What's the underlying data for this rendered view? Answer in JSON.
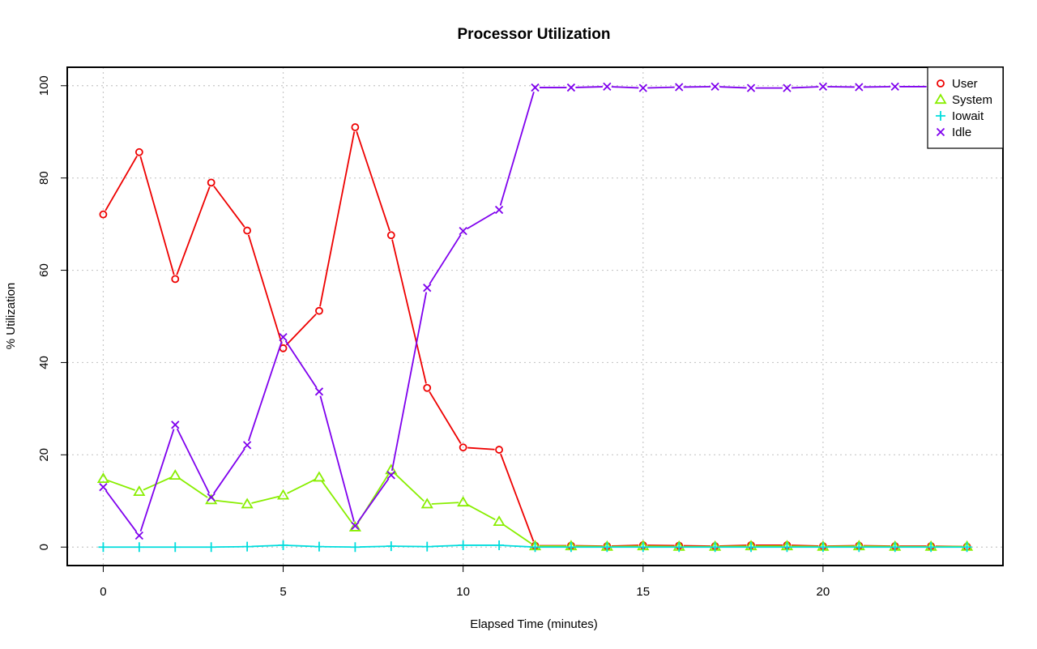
{
  "chart_data": {
    "type": "line",
    "title": "Processor Utilization",
    "xlabel": "Elapsed Time (minutes)",
    "ylabel": "% Utilization",
    "xlim": [
      -1,
      25
    ],
    "ylim": [
      -4,
      104
    ],
    "xticks": [
      0,
      5,
      10,
      15,
      20
    ],
    "yticks": [
      0,
      20,
      40,
      60,
      80,
      100
    ],
    "grid": true,
    "legend_position": "top-right",
    "x": [
      0,
      1,
      2,
      3,
      4,
      5,
      6,
      7,
      8,
      9,
      10,
      11,
      12,
      13,
      14,
      15,
      16,
      17,
      18,
      19,
      20,
      21,
      22,
      23,
      24
    ],
    "series": [
      {
        "name": "User",
        "color": "#ee0000",
        "marker": "circle",
        "values": [
          72.1,
          85.6,
          58.1,
          79.0,
          68.6,
          43.1,
          51.2,
          91.0,
          67.6,
          34.5,
          21.6,
          21.1,
          0.3,
          0.3,
          0.2,
          0.4,
          0.3,
          0.2,
          0.4,
          0.4,
          0.2,
          0.3,
          0.2,
          0.2,
          0.1
        ]
      },
      {
        "name": "System",
        "color": "#88ee00",
        "marker": "triangle",
        "values": [
          14.8,
          12.0,
          15.5,
          10.2,
          9.3,
          11.2,
          15.1,
          4.3,
          16.7,
          9.3,
          9.7,
          5.5,
          0.2,
          0.2,
          0.1,
          0.2,
          0.1,
          0.1,
          0.2,
          0.2,
          0.1,
          0.2,
          0.1,
          0.1,
          0.1
        ]
      },
      {
        "name": "Iowait",
        "color": "#00dddd",
        "marker": "plus",
        "values": [
          0.0,
          0.0,
          0.0,
          0.0,
          0.1,
          0.4,
          0.1,
          0.0,
          0.2,
          0.1,
          0.4,
          0.4,
          0.0,
          0.0,
          0.0,
          0.0,
          0.0,
          0.0,
          0.0,
          0.0,
          0.0,
          0.0,
          0.0,
          0.0,
          0.0
        ]
      },
      {
        "name": "Idle",
        "color": "#7f00ee",
        "marker": "cross",
        "values": [
          13.0,
          2.5,
          26.5,
          10.8,
          22.1,
          45.5,
          33.7,
          4.6,
          15.6,
          56.2,
          68.5,
          73.1,
          99.6,
          99.6,
          99.8,
          99.5,
          99.7,
          99.8,
          99.5,
          99.5,
          99.8,
          99.7,
          99.8,
          99.8,
          99.8
        ]
      }
    ]
  }
}
